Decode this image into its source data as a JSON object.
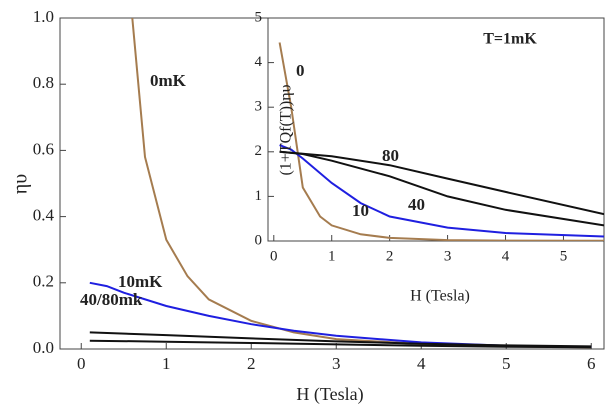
{
  "chart_data": [
    {
      "type": "line",
      "xlabel": "H (Tesla)",
      "ylabel": "ηυ",
      "xlim": [
        -0.25,
        6.15
      ],
      "ylim": [
        0,
        1.0
      ],
      "xticks": [
        0,
        1,
        2,
        3,
        4,
        5,
        6
      ],
      "yticks": [
        {
          "value": 0,
          "label": "0.0"
        },
        0.2,
        0.4,
        0.6,
        0.8,
        {
          "value": 1,
          "label": "1.0"
        }
      ],
      "annotations": [
        "0mK",
        "10mK",
        "40/80mk"
      ],
      "series": [
        {
          "color": "#a57c4f",
          "x": [
            0.6,
            0.75,
            1.0,
            1.25,
            1.5,
            2,
            2.5,
            3,
            4,
            5,
            6
          ],
          "values": [
            1.0,
            0.58,
            0.33,
            0.22,
            0.15,
            0.085,
            0.05,
            0.03,
            0.015,
            0.008,
            0.005
          ]
        },
        {
          "color": "#1f1fe0",
          "x": [
            0.1,
            0.3,
            0.5,
            1,
            1.5,
            2,
            2.5,
            3,
            4,
            5,
            6
          ],
          "values": [
            0.2,
            0.19,
            0.17,
            0.13,
            0.1,
            0.075,
            0.055,
            0.04,
            0.02,
            0.01,
            0.006
          ]
        },
        {
          "color": "#111111",
          "x": [
            0.1,
            1,
            2,
            3,
            4,
            5,
            6
          ],
          "values": [
            0.05,
            0.042,
            0.032,
            0.023,
            0.016,
            0.011,
            0.008
          ]
        },
        {
          "color": "#111111",
          "x": [
            0.1,
            1,
            2,
            3,
            4,
            5,
            6
          ],
          "values": [
            0.025,
            0.022,
            0.018,
            0.014,
            0.01,
            0.007,
            0.005
          ]
        }
      ]
    },
    {
      "type": "line",
      "title": "T=1mK",
      "xlabel": "H (Tesla)",
      "ylabel": "(1+TQf(T))ηυ",
      "xlim": [
        -0.1,
        5.7
      ],
      "ylim": [
        0,
        5
      ],
      "xticks": [
        0,
        1,
        2,
        3,
        4,
        5
      ],
      "yticks": [
        0,
        1,
        2,
        3,
        4,
        5
      ],
      "annotations": [
        "0",
        "80",
        "10",
        "40"
      ],
      "series": [
        {
          "color": "#a57c4f",
          "x": [
            0.1,
            0.3,
            0.5,
            0.8,
            1,
            1.5,
            2,
            3,
            4,
            5.7
          ],
          "values": [
            4.45,
            3.0,
            1.2,
            0.55,
            0.35,
            0.15,
            0.07,
            0.02,
            0.01,
            0.005
          ]
        },
        {
          "color": "#1f1fe0",
          "x": [
            0.1,
            0.3,
            0.5,
            1,
            1.5,
            2,
            3,
            4,
            5.7
          ],
          "values": [
            2.15,
            2.05,
            1.85,
            1.3,
            0.85,
            0.55,
            0.3,
            0.18,
            0.1
          ]
        },
        {
          "color": "#111111",
          "x": [
            0.1,
            0.5,
            1,
            2,
            3,
            4,
            5.7
          ],
          "values": [
            2.0,
            1.95,
            1.8,
            1.45,
            1.0,
            0.7,
            0.35
          ]
        },
        {
          "color": "#111111",
          "x": [
            0.1,
            1,
            2,
            3,
            4,
            5.7
          ],
          "values": [
            2.0,
            1.9,
            1.7,
            1.4,
            1.1,
            0.6
          ]
        }
      ]
    }
  ]
}
